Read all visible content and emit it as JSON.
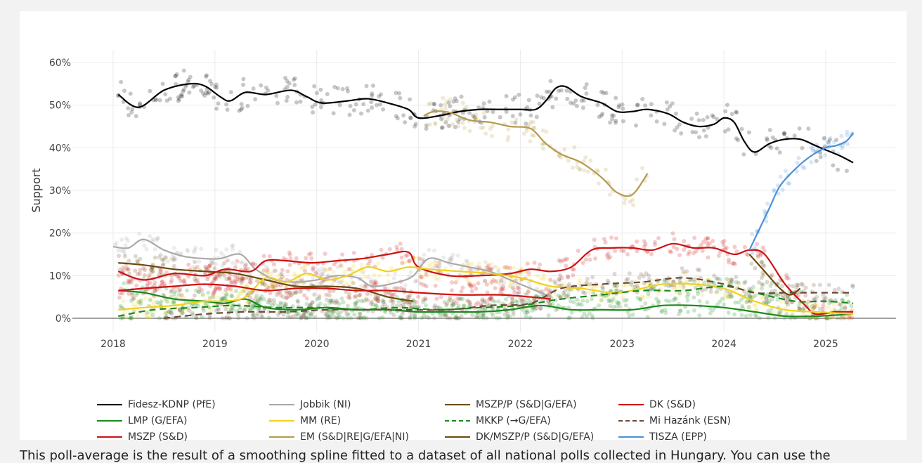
{
  "caption": "This poll-average is the result of a smoothing spline fitted to a dataset of all national polls collected in Hungary. You can use the",
  "chart_data": {
    "type": "line",
    "ylabel": "Support",
    "xlabel": "",
    "ylim": [
      0,
      65
    ],
    "xlim": [
      2017.6,
      2025.8
    ],
    "x_ticks": [
      "2018",
      "2019",
      "2020",
      "2021",
      "2022",
      "2023",
      "2024",
      "2025"
    ],
    "y_ticks": [
      "0%",
      "10%",
      "20%",
      "30%",
      "40%",
      "50%",
      "60%"
    ],
    "grid": true,
    "legend_position": "bottom",
    "series": [
      {
        "name": "Fidesz-KDNP (PfE)",
        "color": "#000000",
        "dash": false,
        "x": [
          2018.05,
          2018.25,
          2018.5,
          2018.75,
          2018.9,
          2019.05,
          2019.15,
          2019.3,
          2019.5,
          2019.75,
          2019.9,
          2020.05,
          2020.3,
          2020.5,
          2020.7,
          2020.9,
          2021.0,
          2021.2,
          2021.4,
          2021.6,
          2021.8,
          2022.0,
          2022.15,
          2022.25,
          2022.35,
          2022.45,
          2022.6,
          2022.8,
          2022.95,
          2023.1,
          2023.25,
          2023.45,
          2023.6,
          2023.75,
          2023.9,
          2024.0,
          2024.1,
          2024.2,
          2024.3,
          2024.45,
          2024.6,
          2024.75,
          2024.9,
          2025.0,
          2025.15,
          2025.27
        ],
        "y": [
          52.5,
          49.5,
          53.5,
          55,
          54.5,
          52,
          51,
          53,
          52.5,
          53.5,
          52,
          50.5,
          51,
          51.5,
          50.5,
          49,
          47,
          47.5,
          48.5,
          49,
          49,
          49,
          49,
          51,
          54,
          54.3,
          52,
          50.5,
          48.5,
          48.5,
          49,
          48,
          46,
          45,
          45.5,
          47,
          46,
          41.5,
          39,
          41,
          42,
          42,
          40.5,
          39.5,
          38,
          36.5
        ]
      },
      {
        "name": "Jobbik (NI)",
        "color": "#aaaaaa",
        "dash": false,
        "x": [
          2018.0,
          2018.15,
          2018.3,
          2018.5,
          2018.7,
          2018.9,
          2019.05,
          2019.25,
          2019.4,
          2019.6,
          2019.8,
          2020.0,
          2020.2,
          2020.4,
          2020.55,
          2020.8,
          2020.95,
          2021.1,
          2021.3,
          2021.5,
          2021.7,
          2021.9,
          2022.1,
          2022.3
        ],
        "y": [
          16.8,
          16.5,
          18.5,
          16,
          14.5,
          14,
          14,
          15,
          11.5,
          9,
          8.5,
          9,
          10,
          9.5,
          7.5,
          8.5,
          10,
          14,
          13,
          12,
          11,
          9,
          7,
          5
        ]
      },
      {
        "name": "MSZP/P (S&D|G/EFA)",
        "color": "#6b4a0a",
        "dash": false,
        "x": [
          2018.05,
          2018.3,
          2018.6,
          2018.9,
          2019.2,
          2019.5,
          2019.8,
          2020.1,
          2020.4,
          2020.7,
          2020.95
        ],
        "y": [
          13,
          12.5,
          11.5,
          11,
          10.5,
          9,
          7.5,
          7.5,
          7,
          5,
          4
        ]
      },
      {
        "name": "DK (S&D)",
        "color": "#cc1111",
        "dash": false,
        "x": [
          2018.05,
          2018.3,
          2018.6,
          2018.9,
          2019.1,
          2019.35,
          2019.5,
          2019.7,
          2019.95,
          2020.2,
          2020.45,
          2020.7,
          2020.9,
          2021.0,
          2021.3,
          2021.6,
          2021.9,
          2022.1,
          2022.3,
          2022.5,
          2022.7,
          2022.9,
          2023.1,
          2023.3,
          2023.5,
          2023.7,
          2023.9,
          2024.1,
          2024.25,
          2024.4,
          2024.6,
          2024.8,
          2024.9,
          2025.1,
          2025.27
        ],
        "y": [
          11,
          9,
          10.5,
          10,
          11.5,
          11,
          13.5,
          13.5,
          13,
          13.5,
          14,
          15,
          15.5,
          12,
          10,
          10,
          10.5,
          11.5,
          11,
          12,
          16,
          16.5,
          16.5,
          16,
          17.5,
          16.5,
          16.5,
          15,
          16,
          15,
          8,
          3,
          1,
          1.5,
          1.5
        ]
      },
      {
        "name": "LMP (G/EFA)",
        "color": "#1a8a1a",
        "dash": false,
        "x": [
          2018.05,
          2018.3,
          2018.6,
          2018.9,
          2019.1,
          2019.3,
          2019.5,
          2019.8,
          2020.1,
          2020.4,
          2020.7,
          2021.0,
          2021.3,
          2021.6,
          2021.9,
          2022.2,
          2022.5,
          2022.8,
          2023.1,
          2023.4,
          2023.7,
          2024.0,
          2024.3,
          2024.6,
          2024.9,
          2025.27
        ],
        "y": [
          6.5,
          6,
          4.5,
          4,
          3.5,
          4.5,
          2.5,
          2,
          2.5,
          2,
          2,
          1.5,
          1.5,
          1.5,
          2,
          3,
          2,
          2,
          2,
          3,
          3,
          2.5,
          1.5,
          0.5,
          0.5,
          1
        ]
      },
      {
        "name": "MM (RE)",
        "color": "#f0d020",
        "dash": false,
        "x": [
          2018.05,
          2018.3,
          2018.6,
          2018.9,
          2019.1,
          2019.3,
          2019.5,
          2019.7,
          2019.9,
          2020.1,
          2020.3,
          2020.5,
          2020.7,
          2020.9,
          2021.1,
          2021.4,
          2021.7,
          2022.0,
          2022.3,
          2022.6,
          2022.9,
          2023.1,
          2023.4,
          2023.7,
          2024.0,
          2024.3,
          2024.6,
          2024.9,
          2025.27
        ],
        "y": [
          2,
          2.5,
          3,
          4,
          4,
          5,
          9.5,
          8.5,
          10.5,
          9,
          10,
          12,
          11,
          12,
          11.5,
          11,
          10.5,
          9.5,
          7.5,
          7,
          6,
          6.5,
          8,
          8,
          7,
          4,
          2,
          1.5,
          1
        ]
      },
      {
        "name": "MKKP (→G/EFA)",
        "color": "#1a8a1a",
        "dash": true,
        "x": [
          2018.05,
          2018.4,
          2018.8,
          2019.2,
          2019.6,
          2020.0,
          2020.4,
          2020.8,
          2021.2,
          2021.6,
          2022.0,
          2022.4,
          2022.8,
          2023.2,
          2023.6,
          2024.0,
          2024.3,
          2024.7,
          2025.0,
          2025.27
        ],
        "y": [
          0.5,
          2,
          2.5,
          3,
          2.5,
          2.5,
          2,
          2.5,
          2,
          2.5,
          3,
          4.5,
          5.5,
          6.5,
          6.5,
          7.5,
          6,
          4,
          4,
          3.5
        ]
      },
      {
        "name": "Mi Hazánk (ESN)",
        "color": "#6b4a3a",
        "dash": true,
        "x": [
          2018.5,
          2018.9,
          2019.3,
          2019.7,
          2020.1,
          2020.5,
          2020.9,
          2021.3,
          2021.7,
          2022.1,
          2022.4,
          2022.8,
          2023.2,
          2023.6,
          2024.0,
          2024.3,
          2024.6,
          2024.9,
          2025.27
        ],
        "y": [
          0,
          1,
          1.5,
          1.5,
          2,
          2,
          2,
          2,
          3,
          3.5,
          7,
          8,
          8.5,
          9.5,
          8,
          6,
          6,
          6,
          6
        ]
      },
      {
        "name": "MSZP (S&D)",
        "color": "#cc1111",
        "dash": false,
        "x": [
          2018.05,
          2018.3,
          2018.6,
          2018.9,
          2019.2,
          2019.5,
          2019.8,
          2020.1,
          2020.4,
          2020.7,
          2021.0,
          2021.4,
          2021.8,
          2022.1,
          2022.3
        ],
        "y": [
          6.5,
          7,
          7.5,
          8,
          7.5,
          6.5,
          7,
          7,
          6.5,
          6.5,
          6,
          5.5,
          5.5,
          5,
          4.5
        ]
      },
      {
        "name": "EM (S&D|RE|G/EFA|NI)",
        "color": "#b59a4a",
        "dash": false,
        "x": [
          2021.05,
          2021.15,
          2021.3,
          2021.5,
          2021.7,
          2021.9,
          2022.1,
          2022.25,
          2022.4,
          2022.6,
          2022.8,
          2022.95,
          2023.1,
          2023.25
        ],
        "y": [
          47.5,
          48.5,
          48.3,
          46.5,
          46,
          45,
          44.5,
          41,
          38.5,
          36.5,
          33,
          29.5,
          29,
          34
        ]
      },
      {
        "name": "DK/MSZP/P (S&D|G/EFA)",
        "color": "#6b4a0a",
        "dash": false,
        "x": [
          2024.25,
          2024.4,
          2024.55,
          2024.65,
          2024.75
        ],
        "y": [
          15,
          11,
          7,
          5.5,
          7
        ]
      },
      {
        "name": "TISZA (EPP)",
        "color": "#4a90d9",
        "dash": false,
        "x": [
          2024.25,
          2024.35,
          2024.45,
          2024.55,
          2024.7,
          2024.85,
          2025.0,
          2025.1,
          2025.2,
          2025.27
        ],
        "y": [
          16,
          21,
          26,
          31,
          35,
          38,
          40,
          40.5,
          41.5,
          43.5
        ]
      }
    ]
  }
}
